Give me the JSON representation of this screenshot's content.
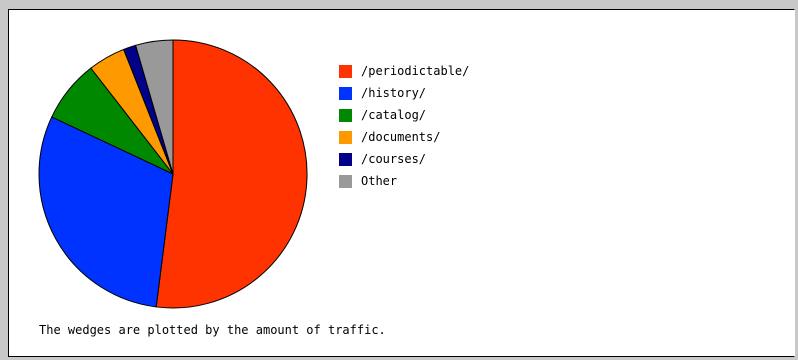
{
  "chart_data": {
    "type": "pie",
    "title": "",
    "categories": [
      "/periodictable/",
      "/history/",
      "/catalog/",
      "/documents/",
      "/courses/",
      "Other"
    ],
    "values": [
      52,
      30,
      7.5,
      4.5,
      1.5,
      4.5
    ],
    "colors": [
      "#ff3300",
      "#0033ff",
      "#008800",
      "#ff9900",
      "#000088",
      "#999999"
    ],
    "legend_position": "right",
    "start_angle_deg": 0,
    "direction": "clockwise"
  },
  "caption": "The wedges are plotted by the amount of traffic."
}
